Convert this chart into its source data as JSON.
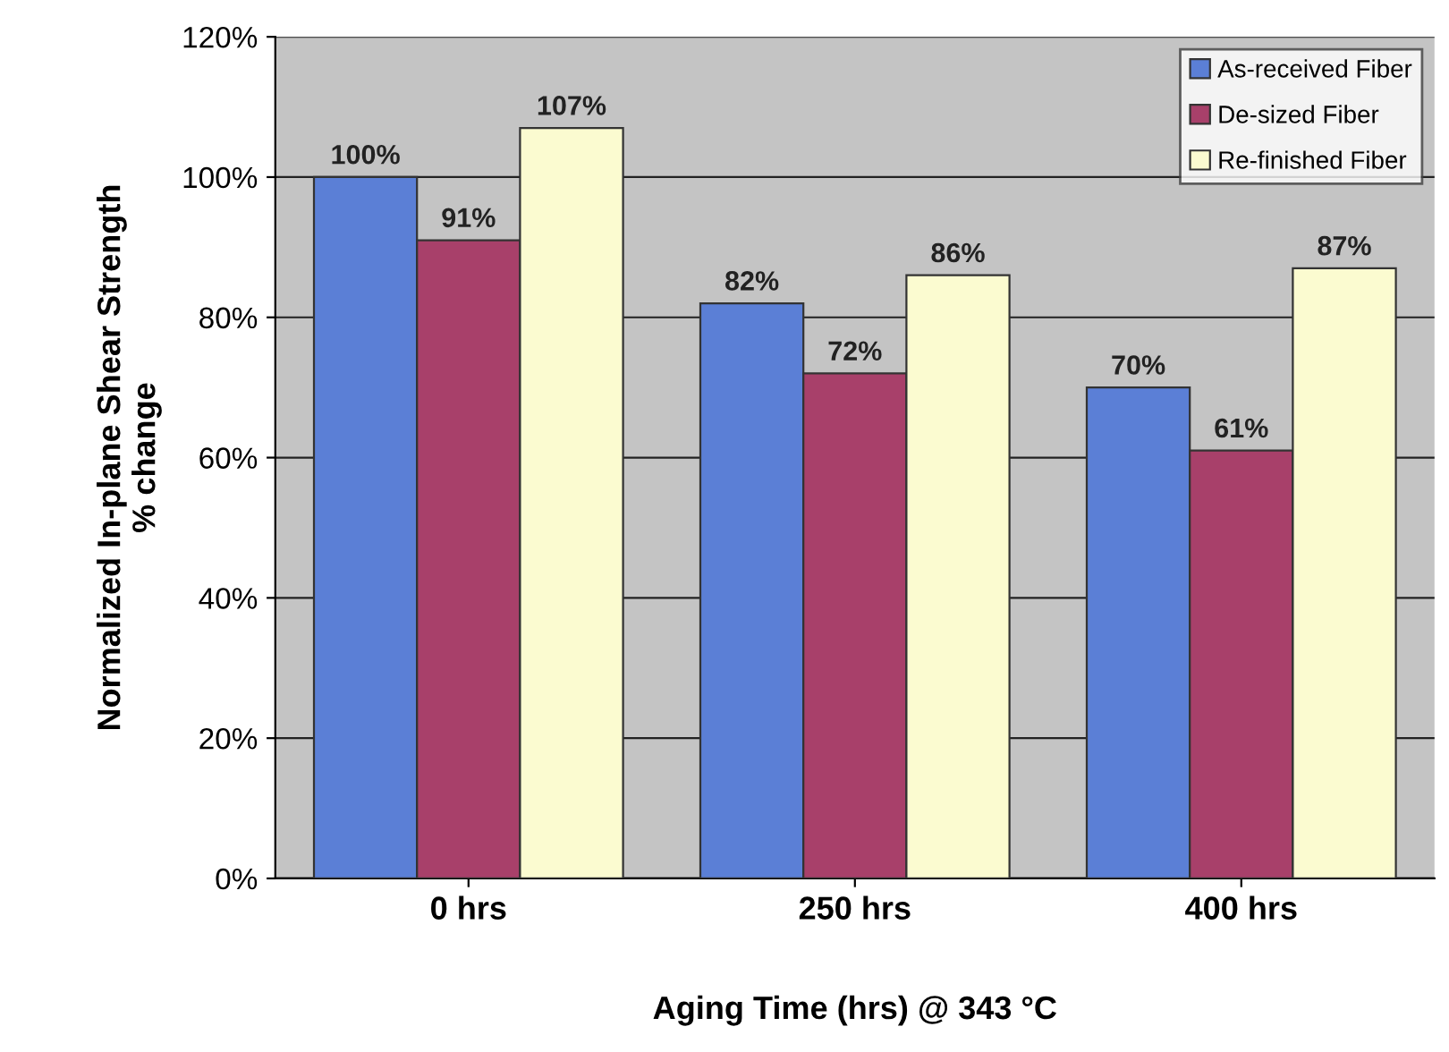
{
  "chart_data": {
    "type": "bar",
    "xlabel": "Aging Time (hrs) @ 343 °C",
    "ylabel": "Normalized In-plane Shear Strength\n% change",
    "categories": [
      "0 hrs",
      "250 hrs",
      "400 hrs"
    ],
    "series": [
      {
        "name": "As-received Fiber",
        "color": "#5b7fd6",
        "values": [
          100,
          82,
          70
        ],
        "value_labels": [
          "100%",
          "82%",
          "70%"
        ]
      },
      {
        "name": "De-sized Fiber",
        "color": "#a8406a",
        "values": [
          91,
          72,
          61
        ],
        "value_labels": [
          "91%",
          "72%",
          "61%"
        ]
      },
      {
        "name": "Re-finished Fiber",
        "color": "#fbfbd0",
        "values": [
          107,
          86,
          87
        ],
        "value_labels": [
          "107%",
          "86%",
          "87%"
        ]
      }
    ],
    "ylim": [
      0,
      120
    ],
    "yticks": [
      {
        "value": 0,
        "label": "0%"
      },
      {
        "value": 20,
        "label": "20%"
      },
      {
        "value": 40,
        "label": "40%"
      },
      {
        "value": 60,
        "label": "60%"
      },
      {
        "value": 80,
        "label": "80%"
      },
      {
        "value": 100,
        "label": "100%"
      },
      {
        "value": 120,
        "label": "120%"
      }
    ],
    "grid": "y",
    "legend": "top right"
  }
}
